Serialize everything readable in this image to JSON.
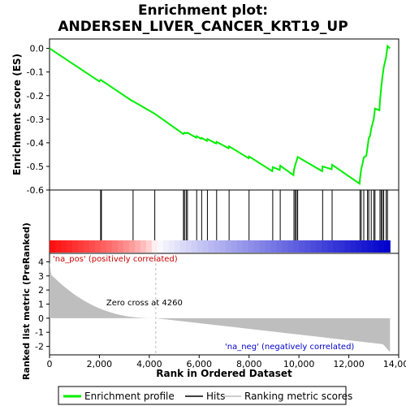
{
  "chart_data": {
    "type": "line",
    "title_line1": "Enrichment plot:",
    "title_line2": "ANDERSEN_LIVER_CANCER_KRT19_UP",
    "ylabel_top": "Enrichment score (ES)",
    "ylabel_bottom": "Ranked list metric (PreRanked)",
    "xlabel": "Rank in Ordered Dataset",
    "xlim": [
      0,
      14000
    ],
    "es_ylim": [
      -0.6,
      0.04
    ],
    "metric_ylim": [
      -2.6,
      4.6
    ],
    "x_ticks": [
      0,
      2000,
      4000,
      6000,
      8000,
      10000,
      12000,
      14000
    ],
    "x_tick_labels": [
      "0",
      "2,000",
      "4,000",
      "6,000",
      "8,000",
      "10,000",
      "12,000",
      "14,000"
    ],
    "es_ticks": [
      0.0,
      -0.1,
      -0.2,
      -0.3,
      -0.4,
      -0.5,
      -0.6
    ],
    "es_tick_labels": [
      "0.0",
      "-0.1",
      "-0.2",
      "-0.3",
      "-0.4",
      "-0.5",
      "-0.6"
    ],
    "metric_ticks": [
      4,
      3,
      2,
      1,
      0,
      -1,
      -2
    ],
    "metric_tick_labels": [
      "4",
      "3",
      "2",
      "1",
      "0",
      "-1",
      "-2"
    ],
    "n_genes": 13650,
    "zero_cross": 4260,
    "zero_cross_label": "Zero cross at 4260",
    "pos_label": "'na_pos' (positively correlated)",
    "neg_label": "'na_neg' (negatively correlated)",
    "hits": [
      2050,
      2080,
      3350,
      4220,
      5370,
      5410,
      5480,
      5530,
      5900,
      6100,
      6330,
      6700,
      7200,
      8000,
      8950,
      9250,
      9800,
      9850,
      9900,
      9950,
      10950,
      11330,
      12450,
      12500,
      12600,
      12750,
      12800,
      12900,
      13000,
      13050,
      13250,
      13300,
      13350,
      13400,
      13500,
      13550
    ],
    "es_points": [
      [
        0,
        0.0
      ],
      [
        2000,
        -0.14
      ],
      [
        2050,
        -0.133
      ],
      [
        2080,
        -0.135
      ],
      [
        3300,
        -0.222
      ],
      [
        3350,
        -0.224
      ],
      [
        4220,
        -0.277
      ],
      [
        5370,
        -0.363
      ],
      [
        5410,
        -0.357
      ],
      [
        5480,
        -0.36
      ],
      [
        5530,
        -0.357
      ],
      [
        5880,
        -0.378
      ],
      [
        5900,
        -0.372
      ],
      [
        6080,
        -0.383
      ],
      [
        6100,
        -0.379
      ],
      [
        6310,
        -0.392
      ],
      [
        6330,
        -0.384
      ],
      [
        6680,
        -0.403
      ],
      [
        6700,
        -0.396
      ],
      [
        7180,
        -0.423
      ],
      [
        7200,
        -0.415
      ],
      [
        7980,
        -0.465
      ],
      [
        8000,
        -0.458
      ],
      [
        8930,
        -0.52
      ],
      [
        8950,
        -0.503
      ],
      [
        9230,
        -0.515
      ],
      [
        9250,
        -0.497
      ],
      [
        9780,
        -0.537
      ],
      [
        9800,
        -0.515
      ],
      [
        9850,
        -0.495
      ],
      [
        9900,
        -0.478
      ],
      [
        9950,
        -0.46
      ],
      [
        10930,
        -0.52
      ],
      [
        10950,
        -0.5
      ],
      [
        11310,
        -0.512
      ],
      [
        11330,
        -0.493
      ],
      [
        12430,
        -0.573
      ],
      [
        12450,
        -0.55
      ],
      [
        12500,
        -0.51
      ],
      [
        12550,
        -0.488
      ],
      [
        12600,
        -0.462
      ],
      [
        12700,
        -0.455
      ],
      [
        12750,
        -0.42
      ],
      [
        12800,
        -0.38
      ],
      [
        12850,
        -0.372
      ],
      [
        12900,
        -0.34
      ],
      [
        13000,
        -0.3
      ],
      [
        13050,
        -0.255
      ],
      [
        13230,
        -0.262
      ],
      [
        13250,
        -0.22
      ],
      [
        13300,
        -0.165
      ],
      [
        13350,
        -0.12
      ],
      [
        13400,
        -0.08
      ],
      [
        13500,
        -0.035
      ],
      [
        13550,
        0.01
      ],
      [
        13650,
        0.0
      ]
    ],
    "legend": [
      "Enrichment profile",
      "Hits",
      "Ranking metric scores"
    ],
    "colors": {
      "es_line": "#00ee00",
      "hits": "#000000",
      "metric_fill": "#bebebe",
      "pos_text": "#cc0000",
      "neg_text": "#0000cc",
      "zero_line": "#bbbbbb",
      "heat_pos_strong": "#ff0000",
      "heat_neg_strong": "#0000cc"
    }
  }
}
